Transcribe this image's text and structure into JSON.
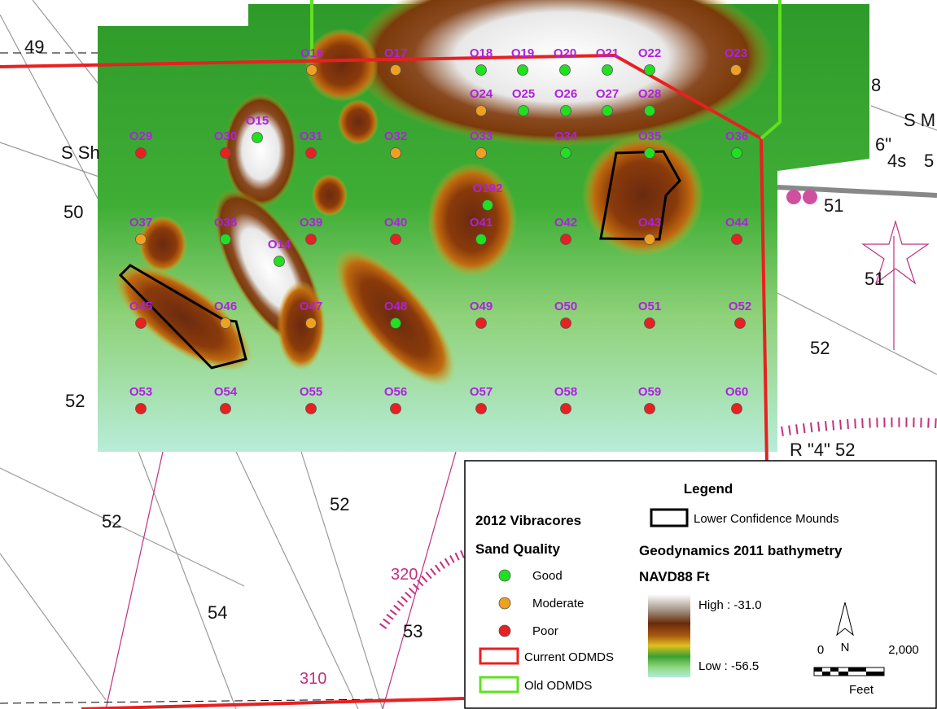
{
  "map_labels": [
    "49",
    "50",
    "52",
    "S Sh",
    "S M",
    "4s",
    "5",
    "51",
    "52",
    "R \"4\" 52",
    "52",
    "52",
    "54",
    "53",
    "320",
    "310",
    "8",
    "6\"",
    "51"
  ],
  "points": [
    {
      "label": "O16",
      "color": "#f0a020"
    },
    {
      "label": "O17",
      "color": "#f0a020"
    },
    {
      "label": "O18",
      "color": "#20e020"
    },
    {
      "label": "O19",
      "color": "#20e020"
    },
    {
      "label": "O20",
      "color": "#20e020"
    },
    {
      "label": "O21",
      "color": "#20e020"
    },
    {
      "label": "O22",
      "color": "#20e020"
    },
    {
      "label": "O23",
      "color": "#f0a020"
    },
    {
      "label": "O24",
      "color": "#f0a020"
    },
    {
      "label": "O25",
      "color": "#20e020"
    },
    {
      "label": "O26",
      "color": "#20e020"
    },
    {
      "label": "O27",
      "color": "#20e020"
    },
    {
      "label": "O28",
      "color": "#20e020"
    },
    {
      "label": "O29",
      "color": "#e82020"
    },
    {
      "label": "O30",
      "color": "#e82020"
    },
    {
      "label": "O15",
      "color": "#20e020"
    },
    {
      "label": "O31",
      "color": "#e82020"
    },
    {
      "label": "O32",
      "color": "#f0a020"
    },
    {
      "label": "O33",
      "color": "#f0a020"
    },
    {
      "label": "O34",
      "color": "#20e020"
    },
    {
      "label": "O35",
      "color": "#20e020"
    },
    {
      "label": "O36",
      "color": "#20e020"
    },
    {
      "label": "O192",
      "color": "#20e020"
    },
    {
      "label": "O37",
      "color": "#f0a020"
    },
    {
      "label": "O38",
      "color": "#20e020"
    },
    {
      "label": "O14",
      "color": "#20e020"
    },
    {
      "label": "O39",
      "color": "#e82020"
    },
    {
      "label": "O40",
      "color": "#e82020"
    },
    {
      "label": "O41",
      "color": "#20e020"
    },
    {
      "label": "O42",
      "color": "#e82020"
    },
    {
      "label": "O43",
      "color": "#f0a020"
    },
    {
      "label": "O44",
      "color": "#e82020"
    },
    {
      "label": "O45",
      "color": "#e82020"
    },
    {
      "label": "O46",
      "color": "#f0a020"
    },
    {
      "label": "O47",
      "color": "#f0a020"
    },
    {
      "label": "O48",
      "color": "#20e020"
    },
    {
      "label": "O49",
      "color": "#e82020"
    },
    {
      "label": "O50",
      "color": "#e82020"
    },
    {
      "label": "O51",
      "color": "#e82020"
    },
    {
      "label": "O52",
      "color": "#e82020"
    },
    {
      "label": "O53",
      "color": "#e82020"
    },
    {
      "label": "O54",
      "color": "#e82020"
    },
    {
      "label": "O55",
      "color": "#e82020"
    },
    {
      "label": "O56",
      "color": "#e82020"
    },
    {
      "label": "O57",
      "color": "#e82020"
    },
    {
      "label": "O58",
      "color": "#e82020"
    },
    {
      "label": "O59",
      "color": "#e82020"
    },
    {
      "label": "O60",
      "color": "#e82020"
    }
  ],
  "legend": {
    "title": "Legend",
    "vibracores": "2012 Vibracores",
    "sand_quality": "Sand Quality",
    "qualities": [
      {
        "label": "Good",
        "color": "#20e020"
      },
      {
        "label": "Moderate",
        "color": "#f0a020"
      },
      {
        "label": "Poor",
        "color": "#e82020"
      }
    ],
    "current_odmds": "Current ODMDS",
    "old_odmds": "Old ODMDS",
    "mounds": "Lower Confidence Mounds",
    "bathymetry": "Geodynamics 2011 bathymetry",
    "units": "NAVD88 Ft",
    "high": "High : -31.0",
    "low": "Low : -56.5",
    "north": "N",
    "scale_start": "0",
    "scale_end": "2,000",
    "scale_unit": "Feet"
  }
}
